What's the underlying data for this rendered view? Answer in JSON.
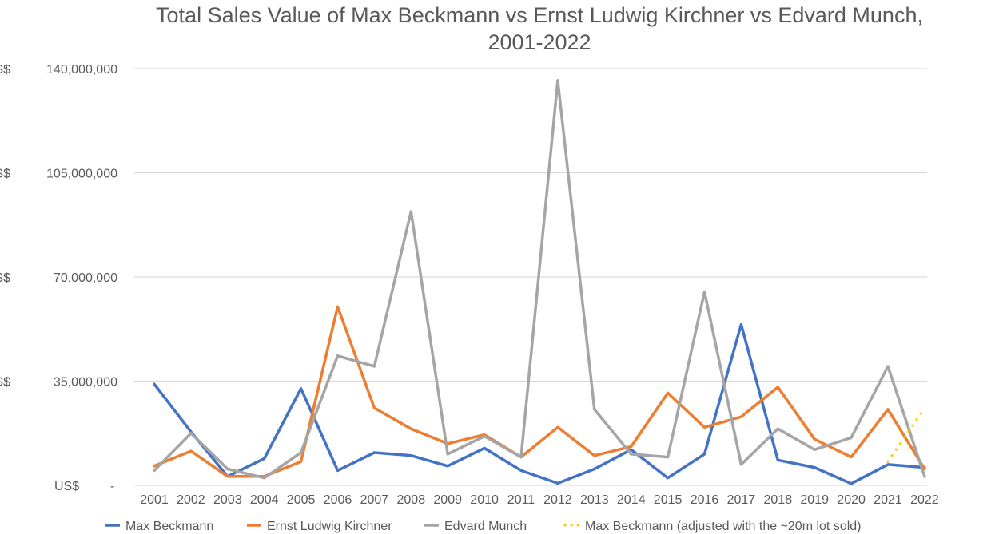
{
  "chart_data": {
    "type": "line",
    "title_lines": [
      "Total Sales Value of Max Beckmann vs Ernst Ludwig Kirchner vs Edvard Munch,",
      "2001-2022"
    ],
    "y_currency": "US$",
    "yticks": [
      {
        "value": 140000000,
        "label": "140,000,000"
      },
      {
        "value": 105000000,
        "label": "105,000,000"
      },
      {
        "value": 70000000,
        "label": "70,000,000"
      },
      {
        "value": 35000000,
        "label": "35,000,000"
      },
      {
        "value": 0,
        "label": "-"
      }
    ],
    "ylim": [
      0,
      140000000
    ],
    "grid": true,
    "legend_position": "bottom",
    "x": [
      "2001",
      "2002",
      "2003",
      "2004",
      "2005",
      "2006",
      "2007",
      "2008",
      "2009",
      "2010",
      "2011",
      "2012",
      "2013",
      "2014",
      "2015",
      "2016",
      "2017",
      "2018",
      "2019",
      "2020",
      "2021",
      "2022"
    ],
    "series": [
      {
        "name": "Max Beckmann",
        "color": "#4472C4",
        "style": "solid",
        "values": [
          34000000,
          18000000,
          3000000,
          9000000,
          32500000,
          5000000,
          11000000,
          10000000,
          6500000,
          12500000,
          5000000,
          700000,
          5500000,
          12000000,
          2500000,
          10500000,
          54000000,
          8500000,
          6000000,
          600000,
          7000000,
          6000000
        ]
      },
      {
        "name": "Ernst Ludwig Kirchner",
        "color": "#ED7D31",
        "style": "solid",
        "values": [
          6500000,
          11500000,
          3000000,
          3000000,
          8000000,
          60000000,
          26000000,
          19000000,
          14000000,
          17000000,
          9500000,
          19500000,
          10000000,
          13000000,
          31000000,
          19500000,
          23000000,
          33000000,
          15500000,
          9500000,
          25500000,
          5500000
        ]
      },
      {
        "name": "Edvard Munch",
        "color": "#A5A5A5",
        "style": "solid",
        "values": [
          5000000,
          17500000,
          5500000,
          2500000,
          11000000,
          43500000,
          40000000,
          92000000,
          10500000,
          16500000,
          9500000,
          136000000,
          25500000,
          10500000,
          9500000,
          65000000,
          7000000,
          19000000,
          12000000,
          16000000,
          40000000,
          3000000
        ]
      },
      {
        "name": "Max Beckmann (adjusted with the ~20m lot sold)",
        "color": "#FFC000",
        "style": "dotted",
        "x": [
          "2021",
          "2022"
        ],
        "values": [
          8000000,
          26000000
        ]
      }
    ]
  }
}
